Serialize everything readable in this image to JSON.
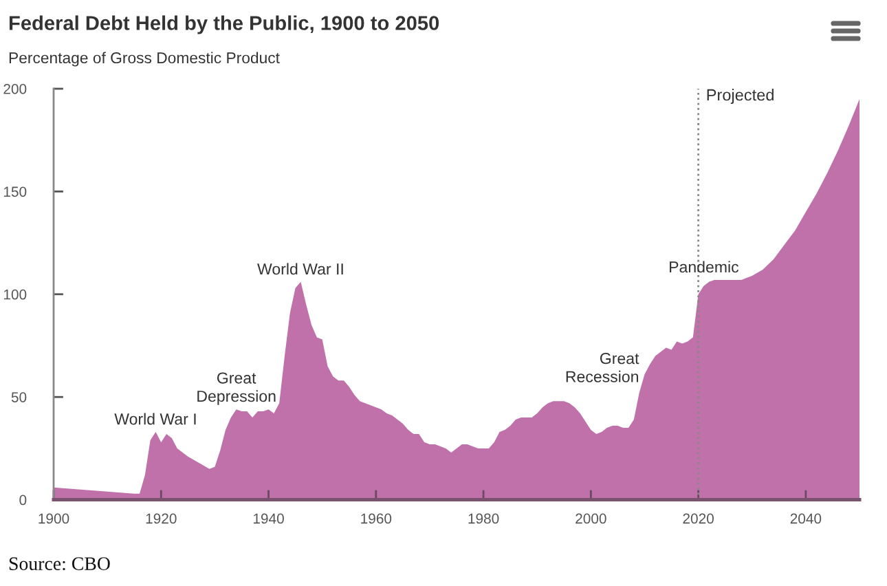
{
  "chart_data": {
    "type": "area",
    "title": "Federal Debt Held by the Public, 1900 to 2050",
    "subtitle": "Percentage of Gross Domestic Product",
    "x": [
      1900,
      1905,
      1910,
      1915,
      1916,
      1917,
      1918,
      1919,
      1920,
      1921,
      1922,
      1923,
      1925,
      1927,
      1929,
      1930,
      1931,
      1932,
      1933,
      1934,
      1935,
      1936,
      1937,
      1938,
      1939,
      1940,
      1941,
      1942,
      1943,
      1944,
      1945,
      1946,
      1947,
      1948,
      1949,
      1950,
      1951,
      1952,
      1953,
      1954,
      1955,
      1956,
      1957,
      1958,
      1959,
      1960,
      1961,
      1962,
      1963,
      1964,
      1965,
      1966,
      1967,
      1968,
      1969,
      1970,
      1971,
      1972,
      1973,
      1974,
      1975,
      1976,
      1977,
      1978,
      1979,
      1980,
      1981,
      1982,
      1983,
      1984,
      1985,
      1986,
      1987,
      1988,
      1989,
      1990,
      1991,
      1992,
      1993,
      1994,
      1995,
      1996,
      1997,
      1998,
      1999,
      2000,
      2001,
      2002,
      2003,
      2004,
      2005,
      2006,
      2007,
      2008,
      2009,
      2010,
      2011,
      2012,
      2013,
      2014,
      2015,
      2016,
      2017,
      2018,
      2019,
      2020,
      2021,
      2022,
      2023,
      2024,
      2025,
      2026,
      2027,
      2028,
      2029,
      2030,
      2032,
      2034,
      2036,
      2038,
      2040,
      2042,
      2044,
      2046,
      2048,
      2050
    ],
    "values": [
      6,
      5,
      4,
      3,
      3,
      12,
      29,
      33,
      28,
      32,
      30,
      25,
      21,
      18,
      15,
      16,
      24,
      34,
      40,
      44,
      43,
      43,
      40,
      43,
      43,
      44,
      42,
      47,
      70,
      91,
      103,
      106,
      95,
      85,
      79,
      78,
      65,
      60,
      58,
      58,
      55,
      51,
      48,
      47,
      46,
      45,
      44,
      42,
      41,
      39,
      37,
      34,
      32,
      32,
      28,
      27,
      27,
      26,
      25,
      23,
      25,
      27,
      27,
      26,
      25,
      25,
      25,
      28,
      33,
      34,
      36,
      39,
      40,
      40,
      40,
      42,
      45,
      47,
      48,
      48,
      48,
      47,
      45,
      42,
      38,
      34,
      32,
      33,
      35,
      36,
      36,
      35,
      35,
      39,
      52,
      61,
      66,
      70,
      72,
      74,
      73,
      77,
      76,
      77,
      79,
      100,
      104,
      106,
      107,
      107,
      107,
      107,
      107,
      107,
      108,
      109,
      112,
      117,
      124,
      131,
      140,
      149,
      159,
      170,
      182,
      195
    ],
    "color": "#c071aa",
    "xlim": [
      1900,
      2050
    ],
    "xticks": [
      1900,
      1920,
      1940,
      1960,
      1980,
      2000,
      2020,
      2040
    ],
    "ylim": [
      0,
      200
    ],
    "yticks": [
      0,
      50,
      100,
      150,
      200
    ],
    "ref_lines": [
      {
        "axis": "x",
        "value": 2020,
        "label": "Projected",
        "color": "#888888",
        "line_style": "dotted"
      }
    ],
    "annotations": [
      {
        "text": "World War I",
        "x": 1919,
        "y": 33
      },
      {
        "text": "Great\nDepression",
        "x": 1934,
        "y": 44
      },
      {
        "text": "World War II",
        "x": 1946,
        "y": 106
      },
      {
        "text": "Great\nRecession",
        "x": 2010,
        "y": 61
      },
      {
        "text": "Pandemic",
        "x": 2021,
        "y": 104
      },
      "Source: CBO"
    ]
  }
}
